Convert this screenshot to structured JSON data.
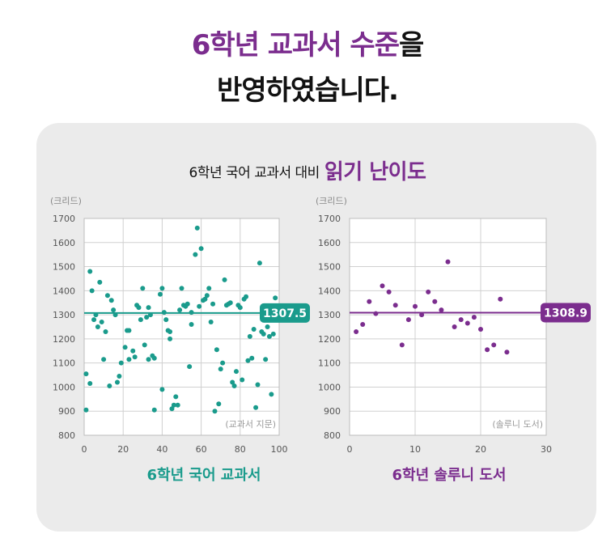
{
  "headline": {
    "line1_accent": "6학년 교과서 수준",
    "line1_rest": "을",
    "line2": "반영하였습니다."
  },
  "subtitle": {
    "prefix": "6학년 국어 교과서 대비",
    "emphasis": "읽기 난이도"
  },
  "colors": {
    "teal": "#1a9b8c",
    "purple": "#7b2d8e"
  },
  "chart_data": [
    {
      "type": "scatter",
      "ylabel": "(크리드)",
      "corner_label": "(교과서 지문)",
      "xlabel": "6학년 국어 교과서",
      "xlim": [
        0,
        100
      ],
      "ylim": [
        800,
        1700
      ],
      "x_ticks": [
        0,
        20,
        40,
        60,
        80,
        100
      ],
      "y_ticks": [
        800,
        900,
        1000,
        1100,
        1200,
        1300,
        1400,
        1500,
        1600,
        1700
      ],
      "mean_line": 1307.5,
      "mean_label": "1307.5",
      "color": "#1a9b8c",
      "points": [
        [
          1,
          905
        ],
        [
          1,
          1055
        ],
        [
          3,
          1480
        ],
        [
          3,
          1015
        ],
        [
          4,
          1400
        ],
        [
          5,
          1280
        ],
        [
          6,
          1300
        ],
        [
          7,
          1250
        ],
        [
          8,
          1435
        ],
        [
          9,
          1270
        ],
        [
          10,
          1115
        ],
        [
          11,
          1230
        ],
        [
          12,
          1380
        ],
        [
          13,
          1005
        ],
        [
          14,
          1360
        ],
        [
          15,
          1320
        ],
        [
          16,
          1300
        ],
        [
          17,
          1020
        ],
        [
          18,
          1045
        ],
        [
          19,
          1100
        ],
        [
          21,
          1165
        ],
        [
          22,
          1235
        ],
        [
          23,
          1115
        ],
        [
          23,
          1235
        ],
        [
          25,
          1150
        ],
        [
          26,
          1125
        ],
        [
          27,
          1340
        ],
        [
          28,
          1330
        ],
        [
          29,
          1280
        ],
        [
          30,
          1410
        ],
        [
          31,
          1175
        ],
        [
          32,
          1290
        ],
        [
          33,
          1115
        ],
        [
          33,
          1330
        ],
        [
          34,
          1300
        ],
        [
          35,
          1130
        ],
        [
          36,
          1120
        ],
        [
          36,
          905
        ],
        [
          39,
          1385
        ],
        [
          40,
          1410
        ],
        [
          40,
          990
        ],
        [
          41,
          1310
        ],
        [
          42,
          1280
        ],
        [
          43,
          1235
        ],
        [
          44,
          1230
        ],
        [
          44,
          1200
        ],
        [
          45,
          910
        ],
        [
          46,
          925
        ],
        [
          47,
          960
        ],
        [
          48,
          925
        ],
        [
          49,
          1320
        ],
        [
          50,
          1410
        ],
        [
          51,
          1340
        ],
        [
          52,
          1335
        ],
        [
          53,
          1345
        ],
        [
          54,
          1085
        ],
        [
          55,
          1260
        ],
        [
          55,
          1310
        ],
        [
          57,
          1550
        ],
        [
          58,
          1660
        ],
        [
          59,
          1335
        ],
        [
          60,
          1575
        ],
        [
          61,
          1360
        ],
        [
          62,
          1365
        ],
        [
          63,
          1380
        ],
        [
          64,
          1410
        ],
        [
          65,
          1270
        ],
        [
          66,
          1345
        ],
        [
          67,
          900
        ],
        [
          68,
          1155
        ],
        [
          69,
          930
        ],
        [
          70,
          1075
        ],
        [
          71,
          1100
        ],
        [
          72,
          1445
        ],
        [
          73,
          1340
        ],
        [
          74,
          1345
        ],
        [
          75,
          1350
        ],
        [
          76,
          1020
        ],
        [
          77,
          1005
        ],
        [
          78,
          1065
        ],
        [
          79,
          1340
        ],
        [
          80,
          1330
        ],
        [
          81,
          1030
        ],
        [
          82,
          1365
        ],
        [
          83,
          1375
        ],
        [
          84,
          1110
        ],
        [
          85,
          1210
        ],
        [
          86,
          1120
        ],
        [
          87,
          1240
        ],
        [
          88,
          915
        ],
        [
          89,
          1010
        ],
        [
          90,
          1515
        ],
        [
          91,
          1230
        ],
        [
          92,
          1220
        ],
        [
          93,
          1115
        ],
        [
          94,
          1250
        ],
        [
          95,
          1210
        ],
        [
          96,
          970
        ],
        [
          97,
          1220
        ],
        [
          98,
          1370
        ]
      ]
    },
    {
      "type": "scatter",
      "ylabel": "(크리드)",
      "corner_label": "(솔루니 도서)",
      "xlabel": "6학년 솔루니 도서",
      "xlim": [
        0,
        30
      ],
      "ylim": [
        800,
        1700
      ],
      "x_ticks": [
        0,
        10,
        20,
        30
      ],
      "y_ticks": [
        800,
        900,
        1000,
        1100,
        1200,
        1300,
        1400,
        1500,
        1600,
        1700
      ],
      "mean_line": 1308.9,
      "mean_label": "1308.9",
      "color": "#7b2d8e",
      "points": [
        [
          1,
          1230
        ],
        [
          2,
          1260
        ],
        [
          3,
          1355
        ],
        [
          4,
          1305
        ],
        [
          5,
          1420
        ],
        [
          6,
          1395
        ],
        [
          7,
          1340
        ],
        [
          8,
          1175
        ],
        [
          9,
          1280
        ],
        [
          10,
          1335
        ],
        [
          11,
          1300
        ],
        [
          12,
          1395
        ],
        [
          13,
          1355
        ],
        [
          14,
          1320
        ],
        [
          15,
          1520
        ],
        [
          16,
          1250
        ],
        [
          17,
          1280
        ],
        [
          18,
          1265
        ],
        [
          19,
          1290
        ],
        [
          20,
          1240
        ],
        [
          21,
          1155
        ],
        [
          22,
          1175
        ],
        [
          23,
          1365
        ],
        [
          24,
          1145
        ]
      ]
    }
  ]
}
